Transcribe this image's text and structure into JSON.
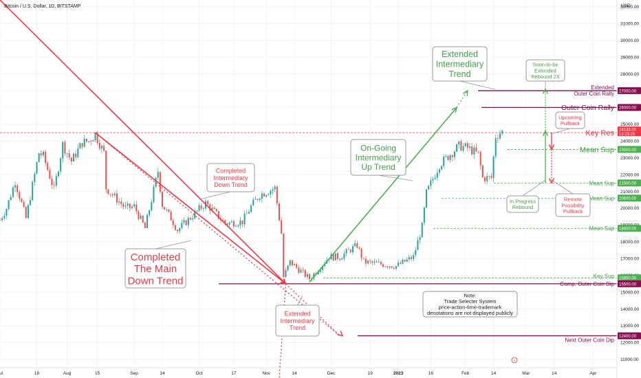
{
  "header": {
    "title": "Bitcoin / U.S. Dollar, 1D, BITSTAMP",
    "currency": "USD"
  },
  "chart_data": {
    "type": "candlestick",
    "y_axis": {
      "ticks": [
        11000,
        12000,
        13000,
        14000,
        15000,
        16000,
        17000,
        18000,
        19000,
        20000,
        21000,
        22000,
        23000,
        24000,
        25000,
        26000,
        27000,
        28000,
        29000,
        30000,
        31000,
        32000
      ],
      "tick_labels": [
        "11000.00",
        "12000.00",
        "13000.00",
        "14000.00",
        "15000.00",
        "16000.00",
        "17000.00",
        "18000.00",
        "19000.00",
        "20000.00",
        "21000.00",
        "22000.00",
        "23000.00",
        "24000.00",
        "25000.00",
        "26000.00",
        "27000.00",
        "28000.00",
        "29000.00",
        "30000.00",
        "31000.00",
        "32000.00"
      ],
      "range": [
        10500,
        32400
      ]
    },
    "x_axis": {
      "range": [
        "2022-07-01",
        "2023-04-12"
      ],
      "ticks": [
        {
          "date": "2022-07-01",
          "label": "Jul"
        },
        {
          "date": "2022-07-18",
          "label": "18"
        },
        {
          "date": "2022-08-01",
          "label": "Aug"
        },
        {
          "date": "2022-08-15",
          "label": "15"
        },
        {
          "date": "2022-09-01",
          "label": "Sep"
        },
        {
          "date": "2022-09-14",
          "label": "14"
        },
        {
          "date": "2022-10-01",
          "label": "Oct"
        },
        {
          "date": "2022-10-17",
          "label": "17"
        },
        {
          "date": "2022-11-01",
          "label": "Nov"
        },
        {
          "date": "2022-11-14",
          "label": "14"
        },
        {
          "date": "2022-12-01",
          "label": "Dec"
        },
        {
          "date": "2022-12-19",
          "label": "19"
        },
        {
          "date": "2023-01-01",
          "label": "2023"
        },
        {
          "date": "2023-01-16",
          "label": "16"
        },
        {
          "date": "2023-02-01",
          "label": "Feb"
        },
        {
          "date": "2023-02-14",
          "label": "14"
        },
        {
          "date": "2023-03-01",
          "label": "Mar"
        },
        {
          "date": "2023-03-14",
          "label": "14"
        },
        {
          "date": "2023-04-01",
          "label": "Apr"
        }
      ]
    },
    "price_anchors": [
      [
        "2022-07-01",
        19300
      ],
      [
        "2022-07-04",
        20000
      ],
      [
        "2022-07-08",
        21600
      ],
      [
        "2022-07-13",
        19400
      ],
      [
        "2022-07-19",
        23300
      ],
      [
        "2022-07-21",
        23100
      ],
      [
        "2022-07-26",
        21100
      ],
      [
        "2022-07-30",
        23800
      ],
      [
        "2022-08-03",
        22800
      ],
      [
        "2022-08-08",
        23900
      ],
      [
        "2022-08-11",
        24000
      ],
      [
        "2022-08-14",
        24400
      ],
      [
        "2022-08-18",
        23300
      ],
      [
        "2022-08-19",
        21200
      ],
      [
        "2022-08-28",
        20000
      ],
      [
        "2022-09-01",
        20100
      ],
      [
        "2022-09-06",
        18800
      ],
      [
        "2022-09-12",
        22200
      ],
      [
        "2022-09-14",
        20200
      ],
      [
        "2022-09-18",
        19400
      ],
      [
        "2022-09-21",
        18700
      ],
      [
        "2022-10-04",
        20300
      ],
      [
        "2022-10-13",
        19100
      ],
      [
        "2022-10-21",
        19200
      ],
      [
        "2022-10-25",
        20100
      ],
      [
        "2022-10-29",
        20800
      ],
      [
        "2022-11-05",
        21200
      ],
      [
        "2022-11-08",
        18500
      ],
      [
        "2022-11-09",
        15900
      ],
      [
        "2022-11-12",
        16800
      ],
      [
        "2022-11-21",
        15800
      ],
      [
        "2022-11-30",
        17100
      ],
      [
        "2022-12-05",
        17100
      ],
      [
        "2022-12-13",
        17800
      ],
      [
        "2022-12-16",
        16800
      ],
      [
        "2022-12-31",
        16550
      ],
      [
        "2023-01-08",
        17100
      ],
      [
        "2023-01-12",
        18900
      ],
      [
        "2023-01-14",
        20900
      ],
      [
        "2023-01-20",
        22600
      ],
      [
        "2023-01-29",
        23700
      ],
      [
        "2023-02-02",
        23600
      ],
      [
        "2023-02-07",
        23200
      ],
      [
        "2023-02-09",
        21800
      ],
      [
        "2023-02-13",
        21800
      ],
      [
        "2023-02-15",
        24300
      ],
      [
        "2023-02-17",
        24500
      ],
      [
        "2023-02-18",
        24538
      ]
    ],
    "horizontal_levels": [
      {
        "price": 27000,
        "label": "Extended",
        "label2": "Outer Coin Rally",
        "price_label": "27000.00",
        "color": "#880e4f",
        "style": "solid"
      },
      {
        "price": 26000,
        "label": "Outer Coin Rally",
        "price_label": "26000.00",
        "color": "#880e4f",
        "style": "solid"
      },
      {
        "price": 24500,
        "label": "Key Res",
        "price_label": "24500.00",
        "color": "#f23645",
        "style": "dashed"
      },
      {
        "price": 23500,
        "label": "Mean Sup",
        "price_label": "23500.00",
        "color": "#4caf50",
        "style": "dashed"
      },
      {
        "price": 21500,
        "label": "Mean Sup",
        "price_label": "21500.00",
        "color": "#4caf50",
        "style": "dashed"
      },
      {
        "price": 20600,
        "label": "Mean Sup",
        "price_label": "20600.00",
        "color": "#4caf50",
        "style": "dashed"
      },
      {
        "price": 18800,
        "label": "Mean Sup",
        "price_label": "18800.00",
        "color": "#4caf50",
        "style": "dashed"
      },
      {
        "price": 15850,
        "label": "Key Sup",
        "price_label": "15850.00",
        "color": "#4caf50",
        "style": "dashed"
      },
      {
        "price": 15500,
        "label": "Comp. Outer Coin Dip",
        "price_label": "15500.00",
        "color": "#880e4f",
        "style": "solid"
      },
      {
        "price": 12400,
        "label": "Next Outer Coin Dip",
        "price_label": "12400.00",
        "color": "#880e4f",
        "style": "solid"
      }
    ],
    "current_price": {
      "price": 24538,
      "label": "24538.00",
      "countdown": "12:23:25"
    },
    "trend_lines": [
      {
        "name": "main-down-trend",
        "color": "#f23645",
        "from": [
          "2022-07-01",
          32400
        ],
        "to": [
          "2022-11-10",
          15500
        ]
      },
      {
        "name": "main-down-trend-extension",
        "color": "#f23645",
        "dotted": true,
        "from": [
          "2022-11-10",
          15500
        ],
        "to": [
          "2022-12-05",
          12400
        ]
      },
      {
        "name": "intermediate-down-trend",
        "color": "#f23645",
        "from": [
          "2022-08-14",
          24500
        ],
        "to": [
          "2022-11-10",
          15500
        ]
      },
      {
        "name": "intermediate-down-trend-extension",
        "color": "#f23645",
        "dotted": true,
        "from": [
          "2022-08-14",
          24500
        ],
        "to": [
          "2022-12-05",
          12400
        ]
      },
      {
        "name": "ongoing-up-trend",
        "color": "#4caf50",
        "from": [
          "2022-11-21",
          15600
        ],
        "to": [
          "2023-01-28",
          26000
        ]
      },
      {
        "name": "ongoing-up-trend-extension",
        "color": "#4caf50",
        "dotted": true,
        "from": [
          "2023-01-28",
          26000
        ],
        "to": [
          "2023-02-02",
          27000
        ]
      }
    ],
    "annotations": {
      "completed_main": [
        "Completed",
        "The Main",
        "Down Trend"
      ],
      "completed_intermediate": [
        "Completed",
        "Intermediary",
        "Down Trend"
      ],
      "ongoing_up": [
        "On-Going",
        "Intermediary",
        "Up Trend"
      ],
      "extended_up": [
        "Extended",
        "Intermediary",
        "Trend"
      ],
      "extended_down": [
        "Extended",
        "Intermediary",
        "Trend"
      ],
      "soon_to_be": [
        "Soon-to-be",
        "Extended",
        "Rebound 2X"
      ],
      "upcoming_pullback": [
        "Upcoming",
        "Pullback"
      ],
      "in_progress": [
        "In Progress",
        "Rebound"
      ],
      "remote_pullback": [
        "Remote",
        "Possibility",
        "Pullback"
      ],
      "note": [
        "Note:",
        "Trade Selecter System",
        "price-action-time-trademark",
        "denotations are not displayed publicly"
      ]
    },
    "colors": {
      "up": "#26a69a",
      "down": "#ef5350",
      "bull_text": "#43a047",
      "bear_text": "#f23645",
      "level_purple": "#880e4f"
    }
  }
}
